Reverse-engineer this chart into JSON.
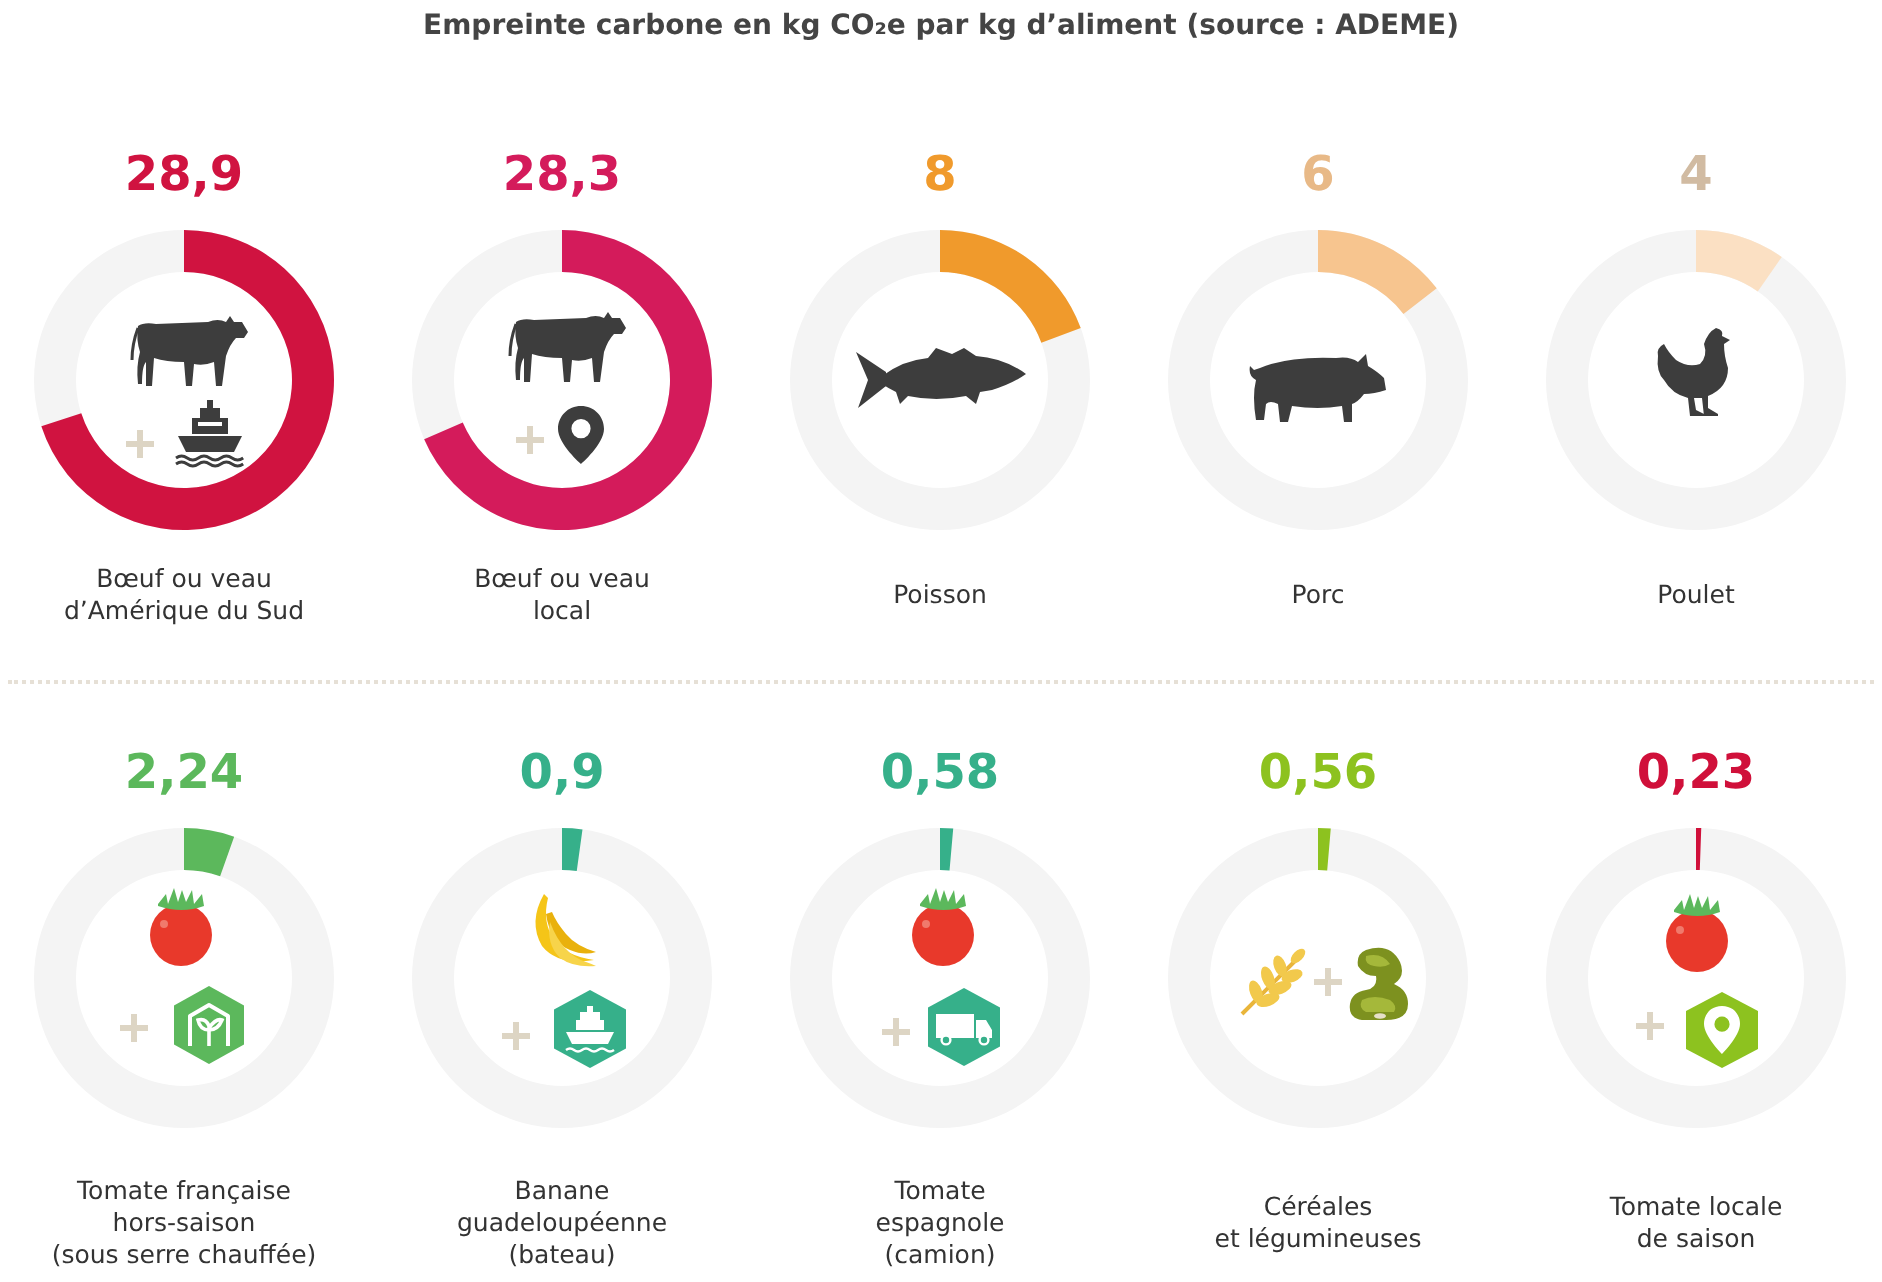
{
  "chart_data": [
    {
      "type": "other",
      "title": "Empreinte carbone en kg CO₂e par kg d’aliment (source : ADEME)",
      "categories": [
        "Bœuf ou veau\nd’Amérique du Sud",
        "Bœuf ou veau\nlocal",
        "Poisson",
        "Porc",
        "Poulet"
      ],
      "values": [
        28.9,
        28.3,
        8,
        6,
        4
      ],
      "value_labels": [
        "28,9",
        "28,3",
        "8",
        "6",
        "4"
      ],
      "colors": [
        "#d01340",
        "#d41b5b",
        "#f09a2c",
        "#f7c58f",
        "#fbe0c3"
      ]
    },
    {
      "type": "other",
      "categories": [
        "Tomate française\nhors-saison\n(sous serre chauffée)",
        "Banane\nguadeloupéenne\n(bateau)",
        "Tomate\nespagnole\n(camion)",
        "Céréales\net légumineuses",
        "Tomate locale\nde saison"
      ],
      "values": [
        2.24,
        0.9,
        0.58,
        0.56,
        0.23
      ],
      "value_labels": [
        "2,24",
        "0,9",
        "0,58",
        "0,56",
        "0,23"
      ],
      "colors": [
        "#5cb85c",
        "#36b08a",
        "#36b08a",
        "#8dc21f",
        "#d0103a"
      ]
    }
  ]
}
